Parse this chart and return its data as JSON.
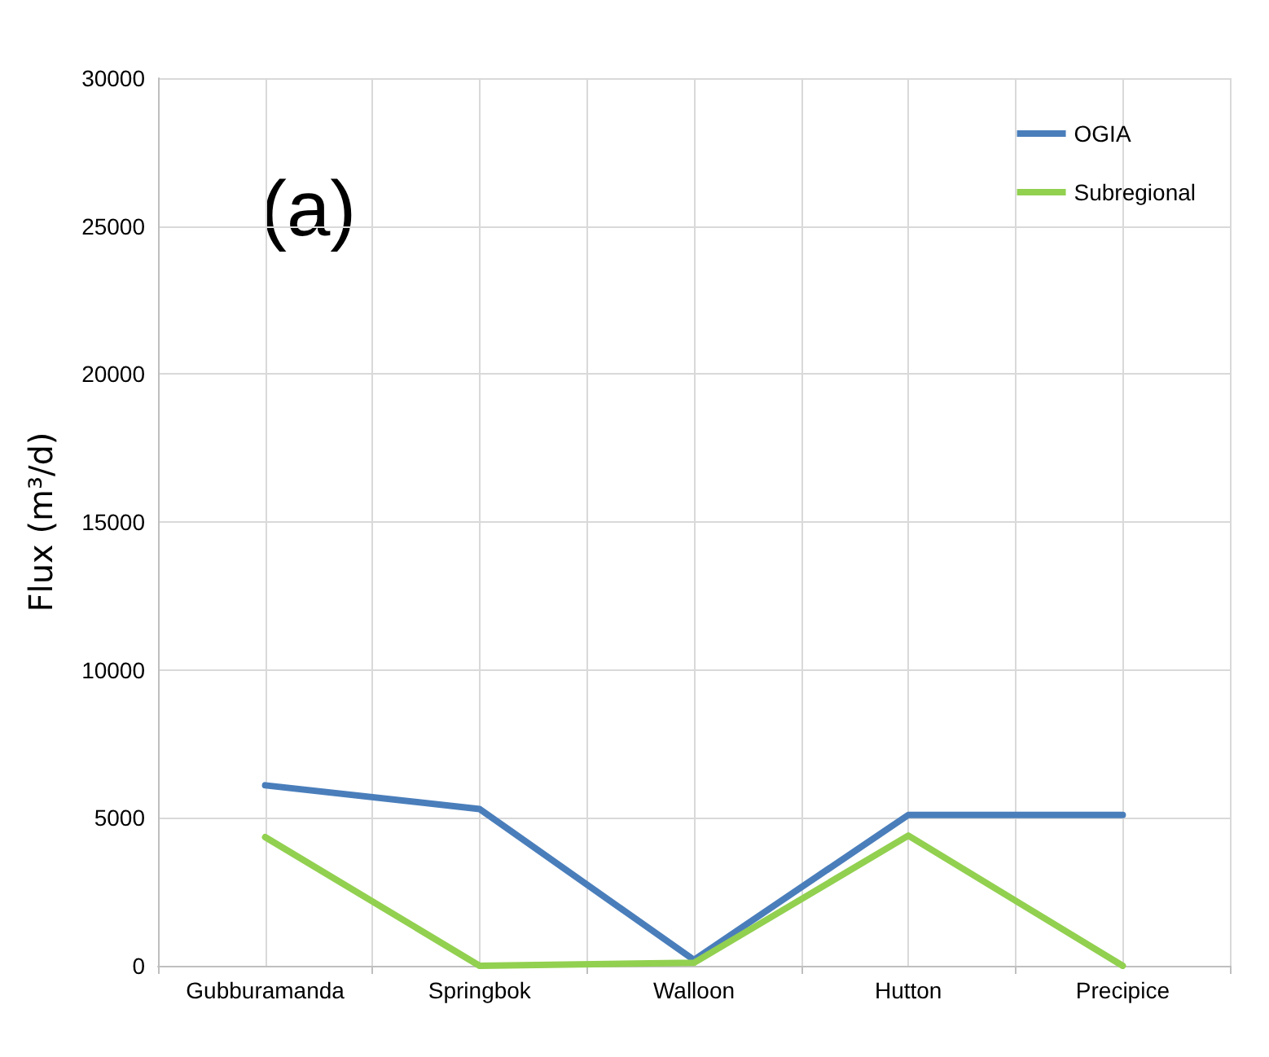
{
  "chart_data": {
    "type": "line",
    "ylabel": "Flux (m³/d)",
    "annotations": [
      "(a)"
    ],
    "categories": [
      "Gubburamanda",
      "Springbok",
      "Walloon",
      "Hutton",
      "Precipice"
    ],
    "series": [
      {
        "name": "OGIA",
        "color": "#4a7ebb",
        "values": [
          6100,
          5300,
          200,
          5100,
          5100
        ]
      },
      {
        "name": "Subregional",
        "color": "#92d050",
        "values": [
          4350,
          0,
          100,
          4400,
          0
        ]
      }
    ],
    "ylim": [
      0,
      30000
    ],
    "yticks": [
      0,
      5000,
      10000,
      15000,
      20000,
      25000,
      30000
    ],
    "grid": true,
    "legend": "top right",
    "marker": "none",
    "line_style": "solid"
  }
}
